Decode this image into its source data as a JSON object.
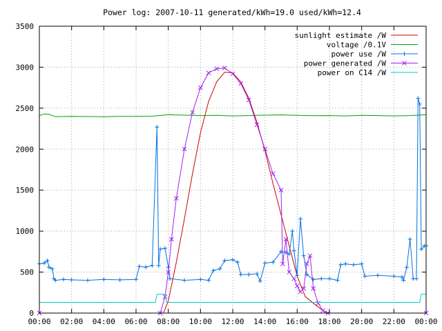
{
  "chart_data": {
    "type": "line",
    "title": "Power log: 2007-10-11 generated/kWh=19.0 used/kWh=12.4",
    "xlabel": "",
    "ylabel": "",
    "xlim": [
      0,
      24
    ],
    "ylim": [
      0,
      3500
    ],
    "grid": true,
    "legend_position": "top-right",
    "x_ticks": [
      "00:00",
      "02:00",
      "04:00",
      "06:00",
      "08:00",
      "10:00",
      "12:00",
      "14:00",
      "16:00",
      "18:00",
      "20:00",
      "22:00",
      "00:00"
    ],
    "y_ticks": [
      "0",
      "500",
      "1000",
      "1500",
      "2000",
      "2500",
      "3000",
      "3500"
    ],
    "series": [
      {
        "name": "sunlight estimate /W",
        "color": "#cc0000",
        "marker": "none",
        "points": [
          [
            0,
            0
          ],
          [
            7.7,
            0
          ],
          [
            8.0,
            150
          ],
          [
            8.5,
            620
          ],
          [
            9.0,
            1150
          ],
          [
            9.5,
            1700
          ],
          [
            10.0,
            2200
          ],
          [
            10.5,
            2580
          ],
          [
            11.0,
            2820
          ],
          [
            11.5,
            2940
          ],
          [
            12.0,
            2930
          ],
          [
            12.5,
            2820
          ],
          [
            13.0,
            2620
          ],
          [
            13.5,
            2330
          ],
          [
            14.0,
            1980
          ],
          [
            14.5,
            1580
          ],
          [
            15.0,
            1200
          ],
          [
            15.5,
            820
          ],
          [
            16.0,
            450
          ],
          [
            16.5,
            200
          ],
          [
            17.0,
            120
          ],
          [
            17.6,
            30
          ],
          [
            17.9,
            0
          ],
          [
            24,
            0
          ]
        ]
      },
      {
        "name": "voltage /0.1V",
        "color": "#00a000",
        "marker": "none",
        "points": [
          [
            0,
            2410
          ],
          [
            0.3,
            2430
          ],
          [
            0.6,
            2425
          ],
          [
            1.0,
            2395
          ],
          [
            2.0,
            2400
          ],
          [
            3.0,
            2398
          ],
          [
            4.0,
            2395
          ],
          [
            5.0,
            2400
          ],
          [
            6.0,
            2400
          ],
          [
            7.0,
            2402
          ],
          [
            8.0,
            2420
          ],
          [
            9.0,
            2415
          ],
          [
            10.0,
            2410
          ],
          [
            11.0,
            2412
          ],
          [
            12.0,
            2405
          ],
          [
            13.0,
            2410
          ],
          [
            14.0,
            2415
          ],
          [
            15.0,
            2418
          ],
          [
            16.0,
            2412
          ],
          [
            17.0,
            2408
          ],
          [
            18.0,
            2410
          ],
          [
            19.0,
            2405
          ],
          [
            20.0,
            2412
          ],
          [
            21.0,
            2410
          ],
          [
            22.0,
            2405
          ],
          [
            23.0,
            2410
          ],
          [
            24.0,
            2420
          ]
        ]
      },
      {
        "name": "power use /W",
        "color": "#0070e0",
        "marker": "plus",
        "points": [
          [
            0,
            600
          ],
          [
            0.3,
            610
          ],
          [
            0.5,
            640
          ],
          [
            0.6,
            560
          ],
          [
            0.8,
            540
          ],
          [
            0.9,
            420
          ],
          [
            1.0,
            400
          ],
          [
            1.5,
            410
          ],
          [
            2.0,
            405
          ],
          [
            3.0,
            400
          ],
          [
            4.0,
            410
          ],
          [
            5.0,
            405
          ],
          [
            6.0,
            410
          ],
          [
            6.2,
            570
          ],
          [
            6.6,
            560
          ],
          [
            7.0,
            580
          ],
          [
            7.3,
            2270
          ],
          [
            7.4,
            580
          ],
          [
            7.5,
            780
          ],
          [
            7.8,
            790
          ],
          [
            8.0,
            560
          ],
          [
            8.1,
            420
          ],
          [
            9.0,
            400
          ],
          [
            10.0,
            410
          ],
          [
            10.5,
            400
          ],
          [
            10.8,
            520
          ],
          [
            11.2,
            540
          ],
          [
            11.5,
            640
          ],
          [
            12.0,
            650
          ],
          [
            12.3,
            620
          ],
          [
            12.5,
            470
          ],
          [
            13.0,
            470
          ],
          [
            13.5,
            480
          ],
          [
            13.7,
            390
          ],
          [
            14.0,
            610
          ],
          [
            14.5,
            620
          ],
          [
            15.0,
            750
          ],
          [
            15.3,
            740
          ],
          [
            15.5,
            720
          ],
          [
            15.7,
            1000
          ],
          [
            15.8,
            760
          ],
          [
            16.0,
            460
          ],
          [
            16.2,
            1150
          ],
          [
            16.4,
            700
          ],
          [
            16.6,
            470
          ],
          [
            17.0,
            410
          ],
          [
            17.5,
            420
          ],
          [
            18.0,
            420
          ],
          [
            18.5,
            400
          ],
          [
            18.7,
            590
          ],
          [
            19.0,
            600
          ],
          [
            19.5,
            590
          ],
          [
            20.0,
            600
          ],
          [
            20.2,
            450
          ],
          [
            21.0,
            460
          ],
          [
            22.0,
            450
          ],
          [
            22.5,
            440
          ],
          [
            22.6,
            400
          ],
          [
            22.8,
            560
          ],
          [
            23.0,
            900
          ],
          [
            23.2,
            420
          ],
          [
            23.4,
            420
          ],
          [
            23.5,
            2620
          ],
          [
            23.6,
            2550
          ],
          [
            23.7,
            780
          ],
          [
            23.9,
            820
          ],
          [
            24.0,
            820
          ]
        ]
      },
      {
        "name": "power generated /W",
        "color": "#a020f0",
        "marker": "x",
        "points": [
          [
            0,
            0
          ],
          [
            7.5,
            0
          ],
          [
            7.8,
            200
          ],
          [
            8.0,
            500
          ],
          [
            8.2,
            900
          ],
          [
            8.5,
            1400
          ],
          [
            9.0,
            2000
          ],
          [
            9.5,
            2450
          ],
          [
            10.0,
            2750
          ],
          [
            10.5,
            2930
          ],
          [
            11.0,
            2980
          ],
          [
            11.5,
            2990
          ],
          [
            12.0,
            2920
          ],
          [
            12.5,
            2800
          ],
          [
            13.0,
            2600
          ],
          [
            13.5,
            2300
          ],
          [
            14.0,
            2000
          ],
          [
            14.5,
            1700
          ],
          [
            15.0,
            1500
          ],
          [
            15.1,
            600
          ],
          [
            15.3,
            900
          ],
          [
            15.5,
            500
          ],
          [
            15.8,
            420
          ],
          [
            16.0,
            330
          ],
          [
            16.2,
            260
          ],
          [
            16.4,
            300
          ],
          [
            16.6,
            600
          ],
          [
            16.8,
            700
          ],
          [
            17.0,
            300
          ],
          [
            17.3,
            120
          ],
          [
            17.6,
            30
          ],
          [
            17.9,
            0
          ],
          [
            24,
            0
          ]
        ]
      },
      {
        "name": "power on C14 /W",
        "color": "#00c8c8",
        "marker": "none",
        "points": [
          [
            0,
            130
          ],
          [
            7.2,
            130
          ],
          [
            7.3,
            230
          ],
          [
            7.8,
            230
          ],
          [
            7.9,
            130
          ],
          [
            18.0,
            130
          ],
          [
            23.6,
            130
          ],
          [
            23.7,
            230
          ],
          [
            24.0,
            230
          ]
        ]
      }
    ]
  }
}
